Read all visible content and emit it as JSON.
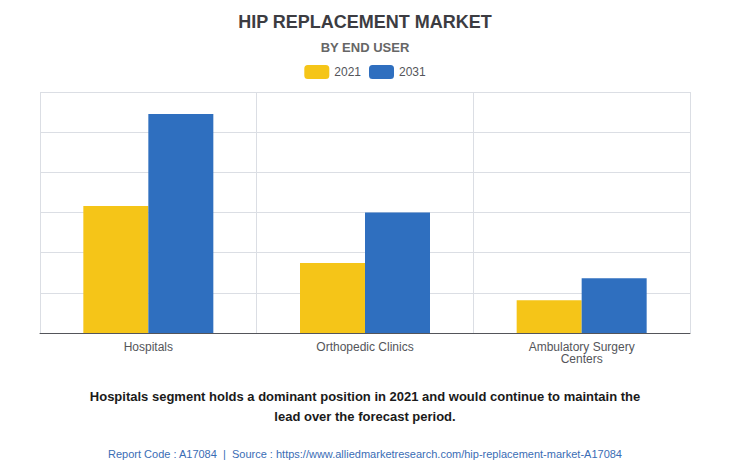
{
  "chart_data": {
    "type": "bar",
    "title": "HIP REPLACEMENT MARKET",
    "subtitle": "BY END USER",
    "categories": [
      "Hospitals",
      "Orthopedic Clinics",
      "Ambulatory Surgery\nCenters"
    ],
    "series": [
      {
        "name": "2021",
        "color": "#F5C518",
        "values": [
          5.8,
          3.2,
          1.5
        ]
      },
      {
        "name": "2031",
        "color": "#2F6FBF",
        "values": [
          10.0,
          5.5,
          2.5
        ]
      }
    ],
    "ylim": [
      0,
      11
    ],
    "yticks": [
      0,
      1.8333333333333333,
      3.6666666666666665,
      5.5,
      7.333333333333333,
      9.166666666666666,
      11
    ],
    "grid": true,
    "legend": "top",
    "tick_labels": "x",
    "annotations": [
      "Hospitals segment holds a dominant position in 2021 and would continue to maintain the\nlead over the forecast period.",
      "Report Code : A17084  |  Source : https://www.alliedmarketresearch.com/hip-replacement-market-A17084"
    ]
  }
}
